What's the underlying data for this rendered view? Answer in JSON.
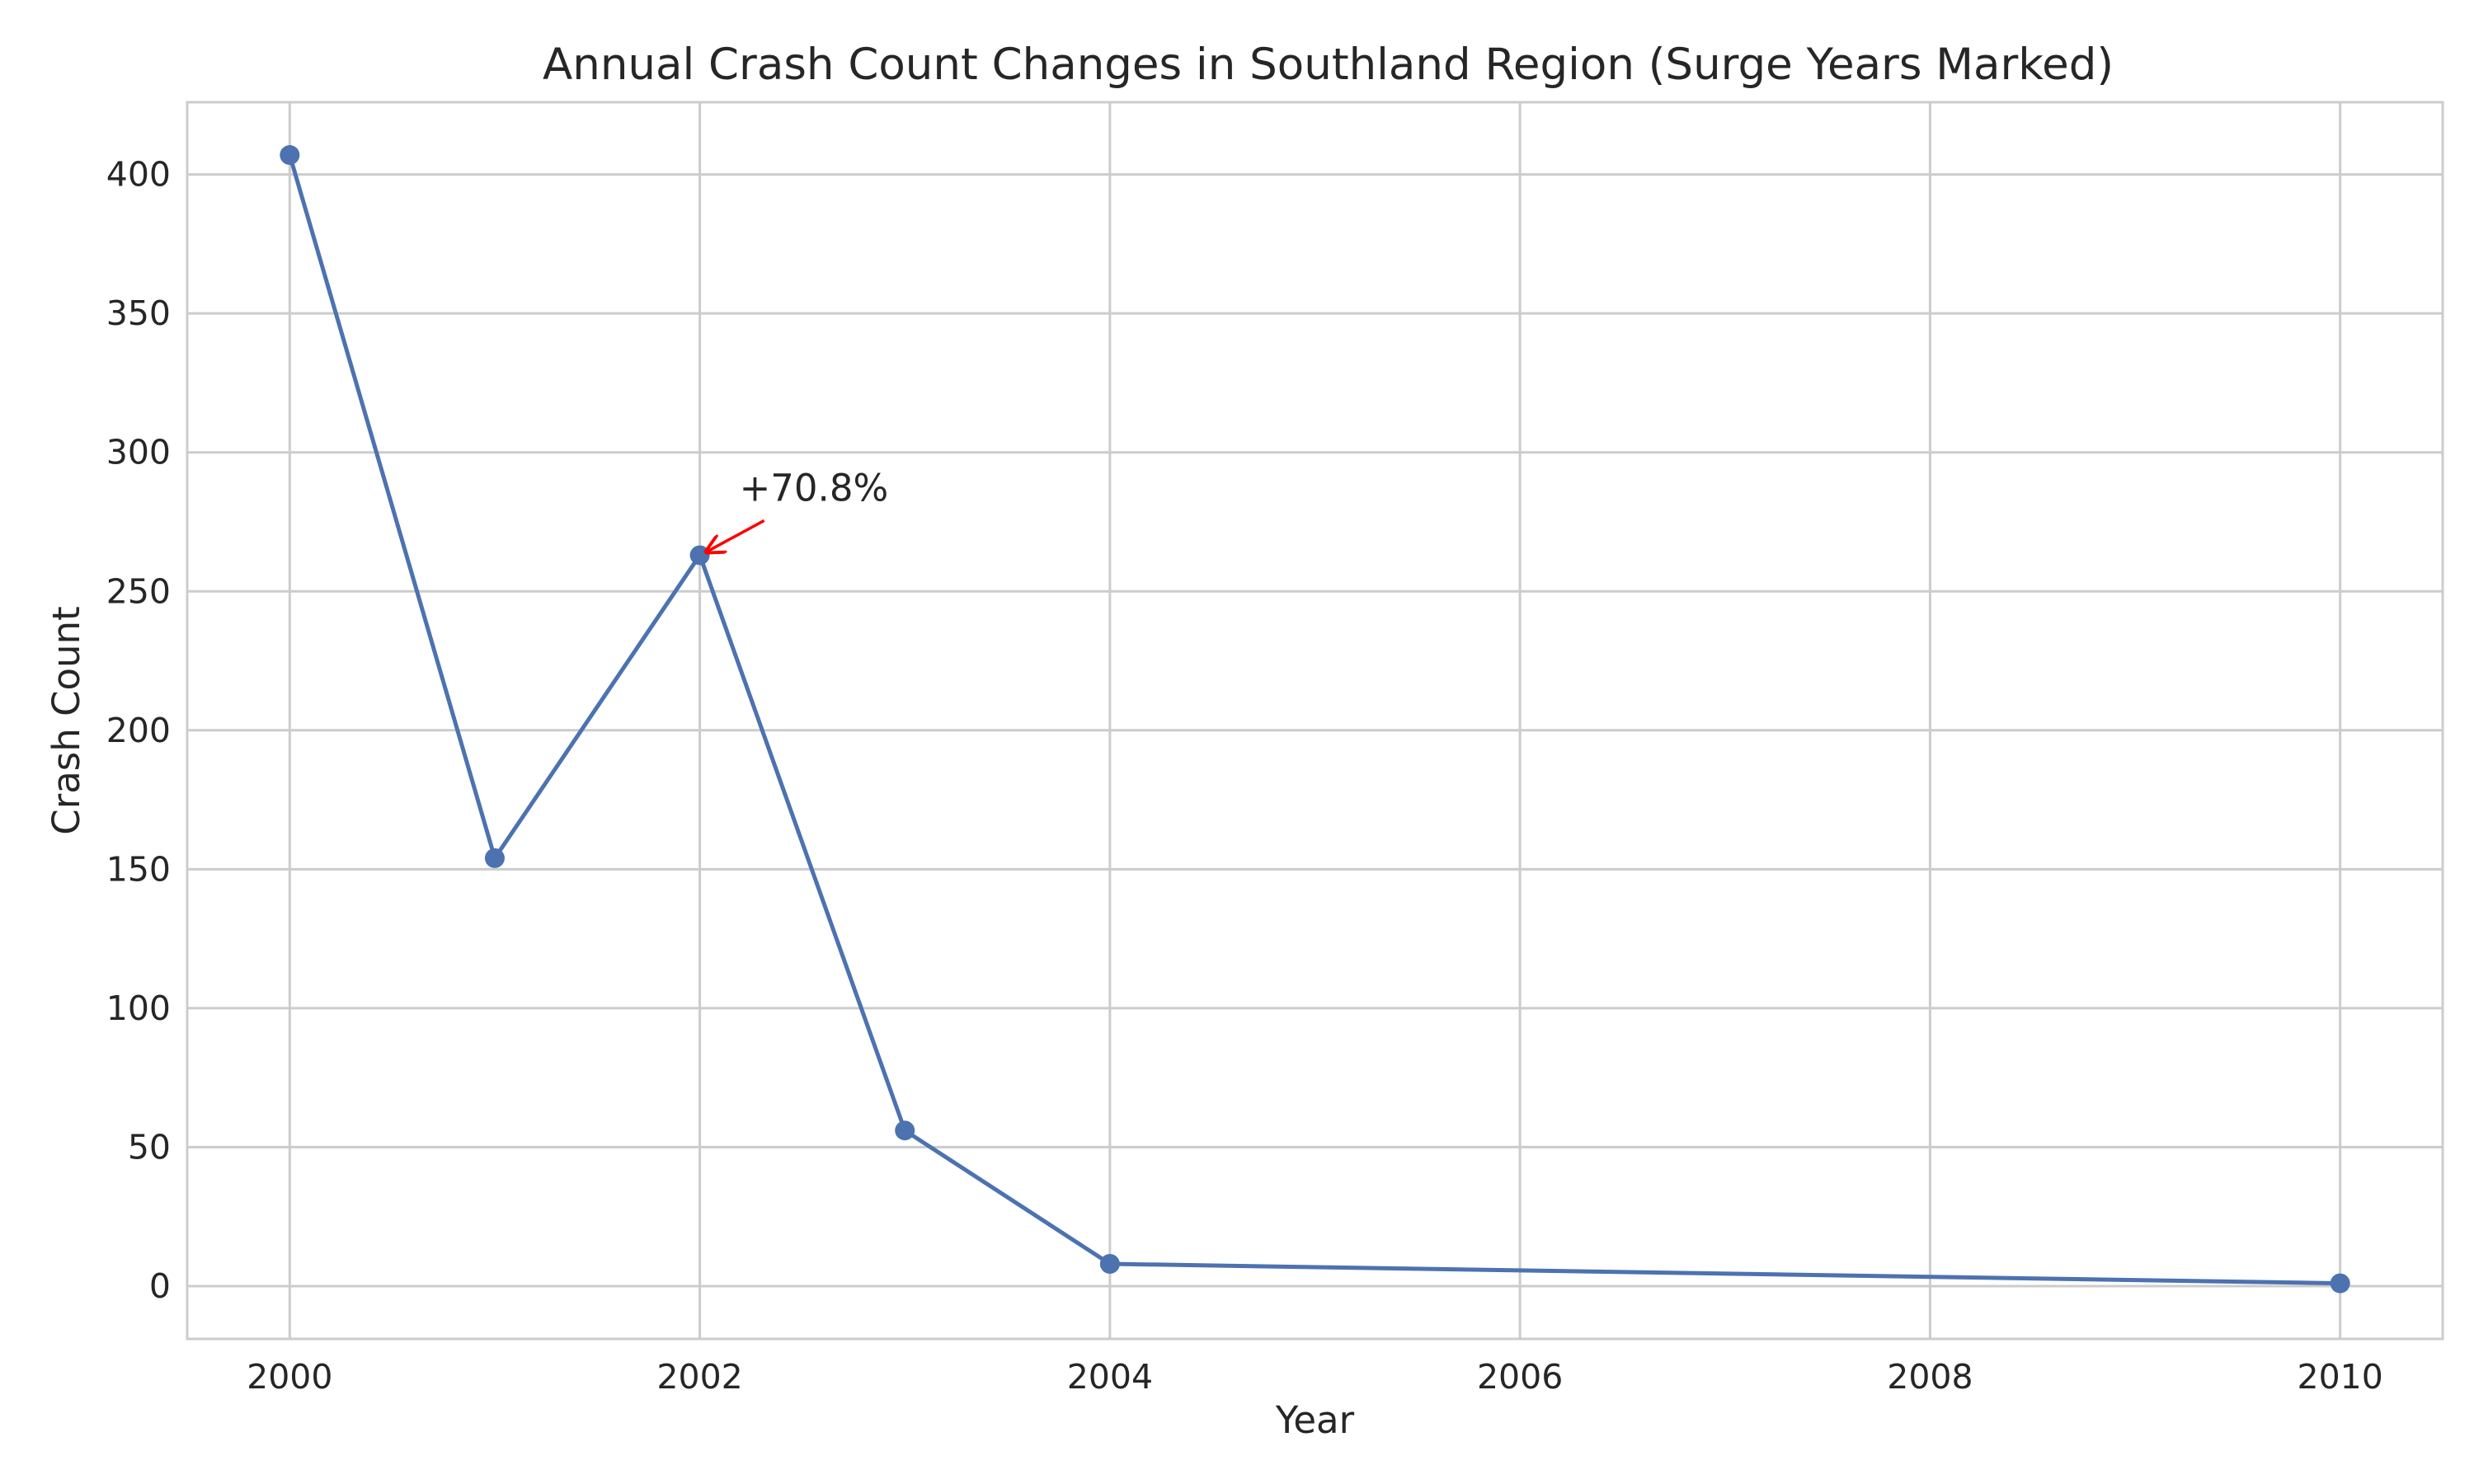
{
  "chart_data": {
    "type": "line",
    "title": "Annual Crash Count Changes in Southland Region (Surge Years Marked)",
    "xlabel": "Year",
    "ylabel": "Crash Count",
    "xlim": [
      1999.5,
      2010.5
    ],
    "ylim": [
      -19,
      426
    ],
    "x_ticks": [
      2000,
      2002,
      2004,
      2006,
      2008,
      2010
    ],
    "y_ticks": [
      0,
      50,
      100,
      150,
      200,
      250,
      300,
      350,
      400
    ],
    "grid": true,
    "series": [
      {
        "x": [
          2000,
          2001,
          2002,
          2003,
          2004,
          2010
        ],
        "values": [
          407,
          154,
          263,
          56,
          8,
          1
        ],
        "color": "#4c72b0",
        "marker": "circle"
      }
    ],
    "annotations": [
      {
        "text": "+70.8%",
        "x": 2002,
        "y": 263,
        "arrow_color": "#ff0000"
      }
    ]
  }
}
